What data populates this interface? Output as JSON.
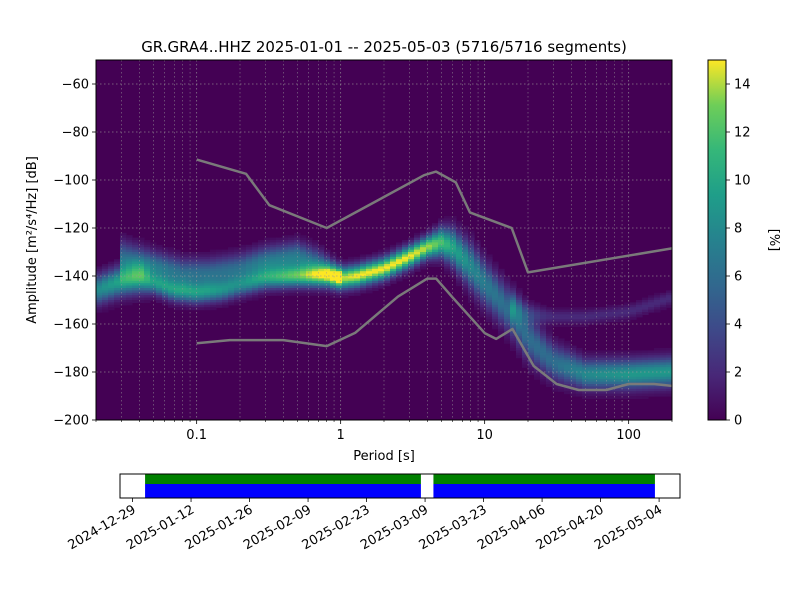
{
  "chart_data": [
    {
      "type": "heatmap",
      "title": "GR.GRA4..HHZ   2025-01-01 -- 2025-05-03  (5716/5716 segments)",
      "xlabel": "Period [s]",
      "ylabel": "Amplitude [m²/s⁴/Hz] [dB]",
      "x_scale": "log",
      "xlim": [
        0.02,
        200
      ],
      "ylim": [
        -200,
        -50
      ],
      "x_ticks": [
        0.1,
        1,
        10,
        100
      ],
      "x_tick_labels": [
        "0.1",
        "1",
        "10",
        "100"
      ],
      "y_ticks": [
        -60,
        -80,
        -100,
        -120,
        -140,
        -160,
        -180,
        -200
      ],
      "y_tick_labels": [
        "−60",
        "−80",
        "−100",
        "−120",
        "−140",
        "−160",
        "−180",
        "−200"
      ],
      "grid": true,
      "colormap": "viridis",
      "colorbar": {
        "label": "[%]",
        "range": [
          0,
          15
        ],
        "ticks": [
          0,
          2,
          4,
          6,
          8,
          10,
          12,
          14
        ],
        "tick_labels": [
          "0",
          "2",
          "4",
          "6",
          "8",
          "10",
          "12",
          "14"
        ]
      },
      "density_ridges": [
        {
          "points": [
            [
              0.02,
              -146
            ],
            [
              0.03,
              -142
            ],
            [
              0.04,
              -141
            ],
            [
              0.05,
              -143
            ],
            [
              0.07,
              -146
            ],
            [
              0.1,
              -147
            ],
            [
              0.15,
              -146
            ],
            [
              0.2,
              -144
            ],
            [
              0.3,
              -141
            ],
            [
              0.5,
              -140
            ],
            [
              0.8,
              -140
            ],
            [
              1.0,
              -141
            ],
            [
              1.3,
              -140
            ],
            [
              2.0,
              -137
            ],
            [
              3.0,
              -132
            ],
            [
              4.0,
              -128
            ],
            [
              5.0,
              -126
            ],
            [
              6.0,
              -128
            ],
            [
              8.0,
              -136
            ],
            [
              10.0,
              -143
            ],
            [
              15.0,
              -155
            ],
            [
              20.0,
              -166
            ],
            [
              30.0,
              -176
            ],
            [
              50.0,
              -181
            ],
            [
              100.0,
              -181
            ],
            [
              200.0,
              -180
            ]
          ],
          "width_db": [
            4,
            4,
            4,
            3,
            3,
            3,
            3,
            3,
            3,
            3,
            3,
            3,
            3,
            3,
            3,
            3,
            4,
            5,
            6,
            6,
            6,
            6,
            5,
            4,
            4,
            4
          ],
          "peak_percent": [
            8,
            10,
            10,
            8,
            9,
            9,
            8,
            7,
            9,
            12,
            13,
            14,
            15,
            15,
            15,
            14,
            12,
            10,
            8,
            7,
            6,
            6,
            6,
            8,
            9,
            9
          ]
        },
        {
          "points": [
            [
              0.03,
              -133
            ],
            [
              0.05,
              -136
            ],
            [
              0.08,
              -139
            ],
            [
              0.12,
              -139
            ],
            [
              0.2,
              -137
            ],
            [
              0.3,
              -134
            ],
            [
              0.5,
              -132
            ],
            [
              0.7,
              -135
            ],
            [
              1.0,
              -140
            ]
          ],
          "width_db": [
            5,
            4,
            4,
            4,
            4,
            4,
            4,
            4,
            3
          ],
          "peak_percent": [
            6,
            7,
            6,
            6,
            6,
            7,
            7,
            6,
            5
          ]
        },
        {
          "points": [
            [
              15.0,
              -152
            ],
            [
              20.0,
              -156
            ],
            [
              30.0,
              -157
            ],
            [
              50.0,
              -157
            ],
            [
              100.0,
              -155
            ],
            [
              200.0,
              -149
            ]
          ],
          "width_db": [
            4,
            3,
            2,
            2,
            2,
            2
          ],
          "peak_percent": [
            4,
            3,
            2,
            2,
            2,
            2
          ]
        }
      ],
      "noise_models": [
        {
          "name": "high",
          "points": [
            [
              0.1,
              -91.5
            ],
            [
              0.22,
              -97.4
            ],
            [
              0.32,
              -110.5
            ],
            [
              0.8,
              -120
            ],
            [
              3.8,
              -98
            ],
            [
              4.6,
              -96.5
            ],
            [
              6.3,
              -101
            ],
            [
              7.9,
              -113.5
            ],
            [
              15.4,
              -120
            ],
            [
              20,
              -138.5
            ],
            [
              200,
              -128.5
            ]
          ]
        },
        {
          "name": "low",
          "points": [
            [
              0.1,
              -168
            ],
            [
              0.17,
              -166.7
            ],
            [
              0.4,
              -166.7
            ],
            [
              0.8,
              -169.2
            ],
            [
              1.26,
              -163.7
            ],
            [
              2.5,
              -148.6
            ],
            [
              4.0,
              -141.1
            ],
            [
              4.6,
              -141.1
            ],
            [
              6.0,
              -149
            ],
            [
              10,
              -163.8
            ],
            [
              12,
              -166.2
            ],
            [
              15.6,
              -162.1
            ],
            [
              21.9,
              -177.5
            ],
            [
              31.6,
              -185
            ],
            [
              45,
              -187.5
            ],
            [
              70,
              -187.5
            ],
            [
              100,
              -185
            ],
            [
              150,
              -185
            ],
            [
              200,
              -185.8
            ]
          ]
        }
      ]
    },
    {
      "type": "timeline",
      "x_type": "date",
      "xlim": [
        "2024-12-26",
        "2025-05-09"
      ],
      "x_ticks": [
        "2024-12-29",
        "2025-01-12",
        "2025-01-26",
        "2025-02-09",
        "2025-02-23",
        "2025-03-09",
        "2025-03-23",
        "2025-04-06",
        "2025-04-20",
        "2025-05-04"
      ],
      "x_tick_labels": [
        "2024-12-29",
        "2025-01-12",
        "2025-01-26",
        "2025-02-09",
        "2025-02-23",
        "2025-03-09",
        "2025-03-23",
        "2025-04-06",
        "2025-04-20",
        "2025-05-04"
      ],
      "bars": [
        {
          "row": "upper",
          "color": "#008000",
          "intervals": [
            [
              "2025-01-01",
              "2025-03-08"
            ],
            [
              "2025-03-11",
              "2025-05-03"
            ]
          ]
        },
        {
          "row": "lower",
          "color": "#0000ff",
          "intervals": [
            [
              "2025-01-01",
              "2025-03-08"
            ],
            [
              "2025-03-11",
              "2025-05-03"
            ]
          ]
        }
      ]
    }
  ]
}
